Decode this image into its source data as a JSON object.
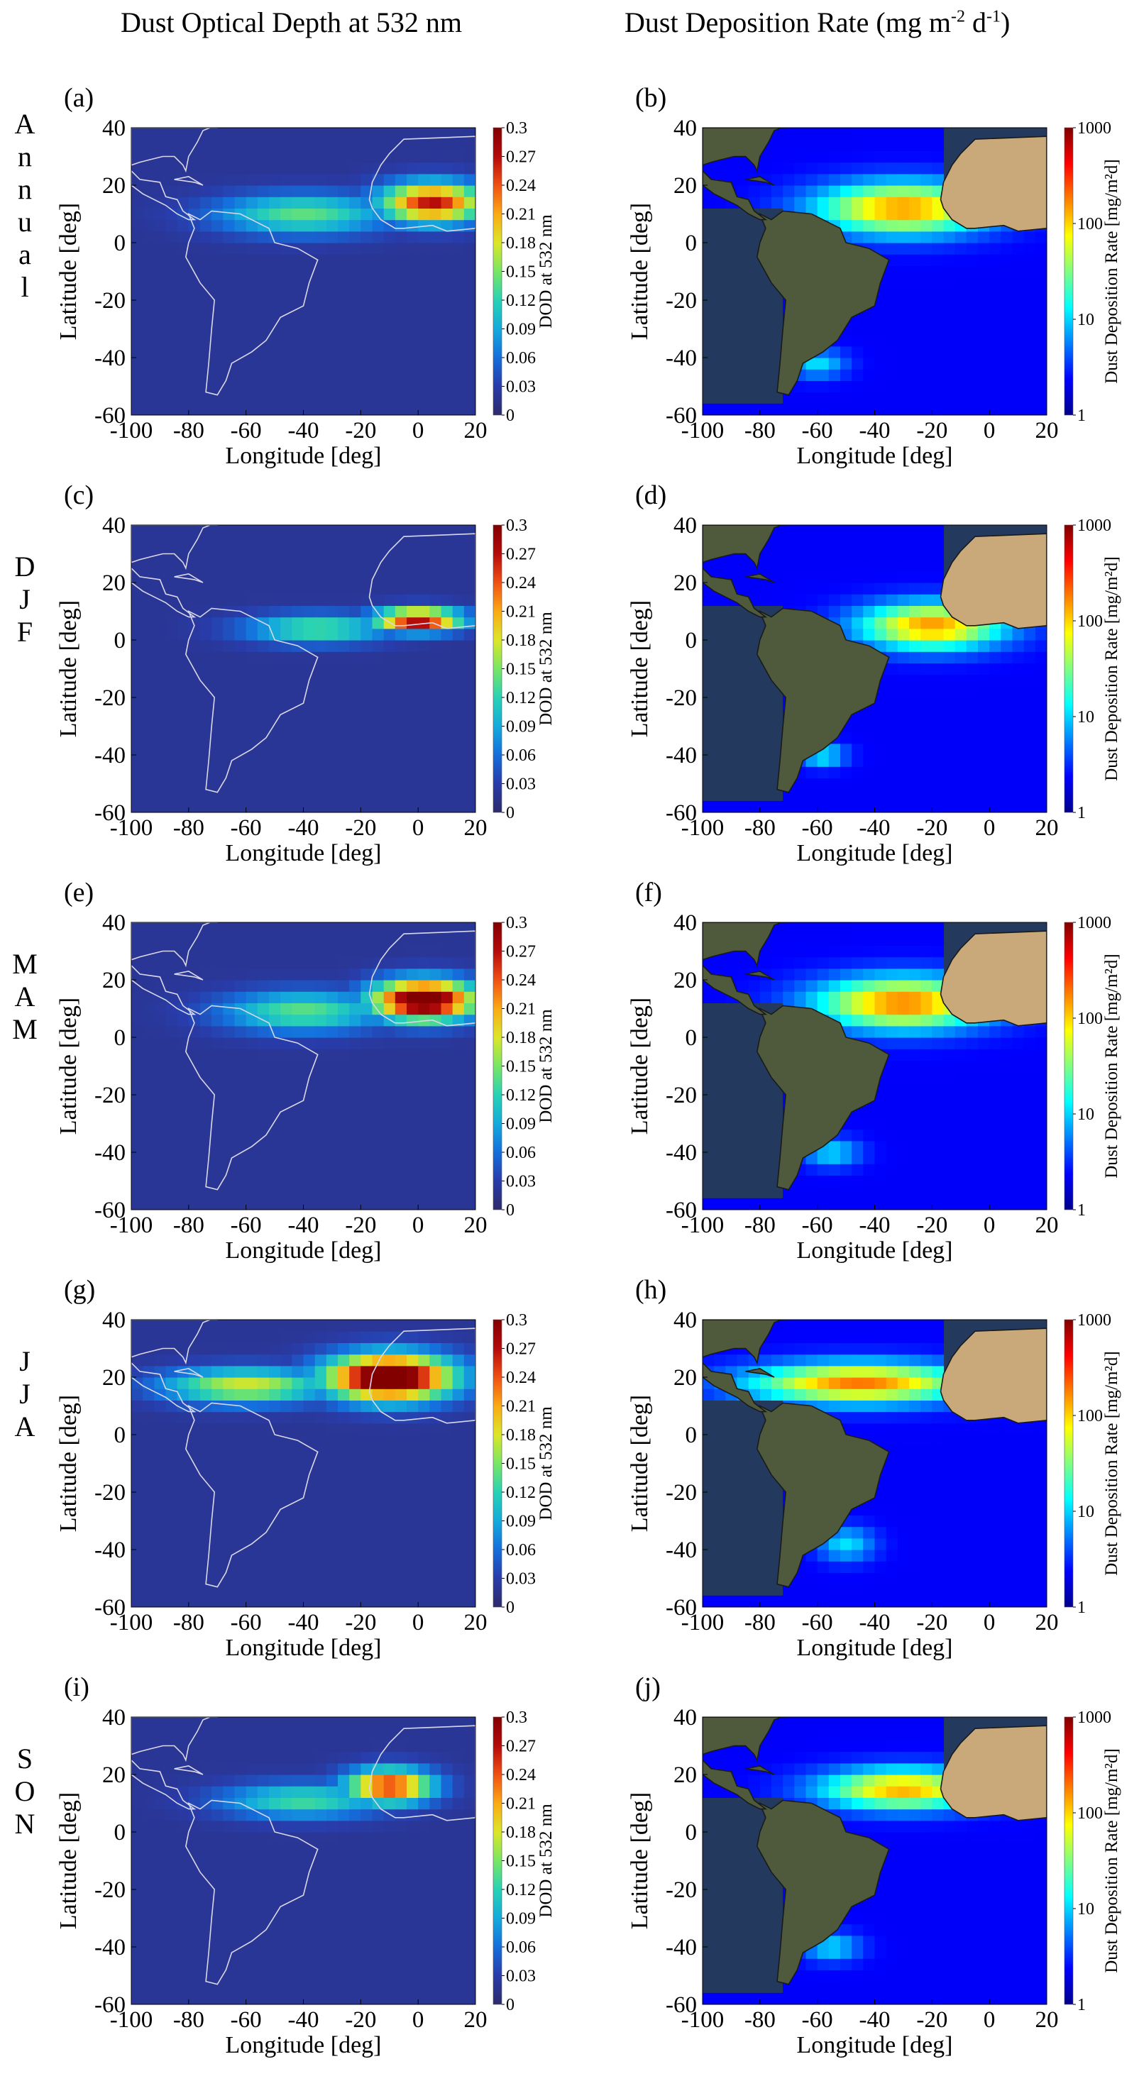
{
  "figure": {
    "col_titles": {
      "dod": "Dust Optical Depth at 532 nm",
      "dep_prefix": "Dust Deposition Rate (mg m",
      "dep_sup1": "-2",
      "dep_mid": " d",
      "dep_sup2": "-1",
      "dep_suffix": ")"
    },
    "row_labels": [
      "Annual",
      "DJF",
      "MAM",
      "JJA",
      "SON"
    ],
    "colors": {
      "ocean_dark": "#2e2a6a",
      "land_sat": "#4f5a3c",
      "sahara_sat": "#c9a97a",
      "deposition_background": "#1010c8",
      "coastline_dod": "#d8d8e8",
      "coastline_dep": "#1a1a1a"
    }
  },
  "chart_data": [
    {
      "panel": "(a)",
      "row": "Annual",
      "type": "heatmap",
      "title": "",
      "xlabel": "Longitude [deg]",
      "ylabel": "Latitude [deg]",
      "xlim": [
        -100,
        20
      ],
      "ylim": [
        -60,
        40
      ],
      "x_ticks": [
        "-100",
        "-80",
        "-60",
        "-40",
        "-20",
        "0",
        "20"
      ],
      "y_ticks": [
        "40",
        "20",
        "0",
        "-20",
        "-40",
        "-60"
      ],
      "colorbar": {
        "label": "DOD at 532 nm",
        "scale": "linear",
        "range": [
          0,
          0.3
        ],
        "ticks": [
          "0.3",
          "0.27",
          "0.24",
          "0.21",
          "0.18",
          "0.15",
          "0.12",
          "0.09",
          "0.06",
          "0.03",
          "0"
        ]
      },
      "plumes": [
        {
          "lon": 5,
          "lat": 14,
          "value": 0.25,
          "spread_lon": 18,
          "spread_lat": 7
        },
        {
          "lon": -40,
          "lat": 10,
          "value": 0.12,
          "spread_lon": 30,
          "spread_lat": 7
        }
      ]
    },
    {
      "panel": "(b)",
      "row": "Annual",
      "type": "heatmap",
      "title": "",
      "xlabel": "Longitude [deg]",
      "ylabel": "Latitude [deg]",
      "xlim": [
        -100,
        20
      ],
      "ylim": [
        -60,
        40
      ],
      "x_ticks": [
        "-100",
        "-80",
        "-60",
        "-40",
        "-20",
        "0",
        "20"
      ],
      "y_ticks": [
        "40",
        "20",
        "0",
        "-20",
        "-40",
        "-60"
      ],
      "colorbar": {
        "label": "Dust Deposition Rate [mg/m²d]",
        "scale": "log",
        "range": [
          1,
          1000
        ],
        "ticks": [
          "1000",
          "100",
          "10",
          "1"
        ]
      },
      "plumes": [
        {
          "lon": -30,
          "lat": 12,
          "value": 120,
          "spread_lon": 30,
          "spread_lat": 9
        },
        {
          "lon": -60,
          "lat": -42,
          "value": 6,
          "spread_lon": 10,
          "spread_lat": 5
        }
      ]
    },
    {
      "panel": "(c)",
      "row": "DJF",
      "type": "heatmap",
      "title": "",
      "xlabel": "Longitude [deg]",
      "ylabel": "Latitude [deg]",
      "xlim": [
        -100,
        20
      ],
      "ylim": [
        -60,
        40
      ],
      "x_ticks": [
        "-100",
        "-80",
        "-60",
        "-40",
        "-20",
        "0",
        "20"
      ],
      "y_ticks": [
        "40",
        "20",
        "0",
        "-20",
        "-40",
        "-60"
      ],
      "colorbar": {
        "label": "DOD at 532 nm",
        "scale": "linear",
        "range": [
          0,
          0.3
        ],
        "ticks": [
          "0.3",
          "0.27",
          "0.24",
          "0.21",
          "0.18",
          "0.15",
          "0.12",
          "0.09",
          "0.06",
          "0.03",
          "0"
        ]
      },
      "plumes": [
        {
          "lon": 0,
          "lat": 7,
          "value": 0.27,
          "spread_lon": 15,
          "spread_lat": 4
        },
        {
          "lon": -35,
          "lat": 4,
          "value": 0.12,
          "spread_lon": 25,
          "spread_lat": 5
        }
      ]
    },
    {
      "panel": "(d)",
      "row": "DJF",
      "type": "heatmap",
      "title": "",
      "xlabel": "Longitude [deg]",
      "ylabel": "Latitude [deg]",
      "xlim": [
        -100,
        20
      ],
      "ylim": [
        -60,
        40
      ],
      "x_ticks": [
        "-100",
        "-80",
        "-60",
        "-40",
        "-20",
        "0",
        "20"
      ],
      "y_ticks": [
        "40",
        "20",
        "0",
        "-20",
        "-40",
        "-60"
      ],
      "colorbar": {
        "label": "Dust Deposition Rate [mg/m²d]",
        "scale": "log",
        "range": [
          1,
          1000
        ],
        "ticks": [
          "1000",
          "100",
          "10",
          "1"
        ]
      },
      "plumes": [
        {
          "lon": -20,
          "lat": 5,
          "value": 120,
          "spread_lon": 25,
          "spread_lat": 8
        },
        {
          "lon": -58,
          "lat": -40,
          "value": 8,
          "spread_lon": 8,
          "spread_lat": 4
        }
      ]
    },
    {
      "panel": "(e)",
      "row": "MAM",
      "type": "heatmap",
      "title": "",
      "xlabel": "Longitude [deg]",
      "ylabel": "Latitude [deg]",
      "xlim": [
        -100,
        20
      ],
      "ylim": [
        -60,
        40
      ],
      "x_ticks": [
        "-100",
        "-80",
        "-60",
        "-40",
        "-20",
        "0",
        "20"
      ],
      "y_ticks": [
        "40",
        "20",
        "0",
        "-20",
        "-40",
        "-60"
      ],
      "colorbar": {
        "label": "DOD at 532 nm",
        "scale": "linear",
        "range": [
          0,
          0.3
        ],
        "ticks": [
          "0.3",
          "0.27",
          "0.24",
          "0.21",
          "0.18",
          "0.15",
          "0.12",
          "0.09",
          "0.06",
          "0.03",
          "0"
        ]
      },
      "plumes": [
        {
          "lon": 2,
          "lat": 13,
          "value": 0.32,
          "spread_lon": 18,
          "spread_lat": 7
        },
        {
          "lon": -40,
          "lat": 9,
          "value": 0.12,
          "spread_lon": 28,
          "spread_lat": 7
        }
      ]
    },
    {
      "panel": "(f)",
      "row": "MAM",
      "type": "heatmap",
      "title": "",
      "xlabel": "Longitude [deg]",
      "ylabel": "Latitude [deg]",
      "xlim": [
        -100,
        20
      ],
      "ylim": [
        -60,
        40
      ],
      "x_ticks": [
        "-100",
        "-80",
        "-60",
        "-40",
        "-20",
        "0",
        "20"
      ],
      "y_ticks": [
        "40",
        "20",
        "0",
        "-20",
        "-40",
        "-60"
      ],
      "colorbar": {
        "label": "Dust Deposition Rate [mg/m²d]",
        "scale": "log",
        "range": [
          1,
          1000
        ],
        "ticks": [
          "1000",
          "100",
          "10",
          "1"
        ]
      },
      "plumes": [
        {
          "lon": -30,
          "lat": 12,
          "value": 150,
          "spread_lon": 30,
          "spread_lat": 9
        },
        {
          "lon": -55,
          "lat": -40,
          "value": 6,
          "spread_lon": 10,
          "spread_lat": 5
        }
      ]
    },
    {
      "panel": "(g)",
      "row": "JJA",
      "type": "heatmap",
      "title": "",
      "xlabel": "Longitude [deg]",
      "ylabel": "Latitude [deg]",
      "xlim": [
        -100,
        20
      ],
      "ylim": [
        -60,
        40
      ],
      "x_ticks": [
        "-100",
        "-80",
        "-60",
        "-40",
        "-20",
        "0",
        "20"
      ],
      "y_ticks": [
        "40",
        "20",
        "0",
        "-20",
        "-40",
        "-60"
      ],
      "colorbar": {
        "label": "DOD at 532 nm",
        "scale": "linear",
        "range": [
          0,
          0.3
        ],
        "ticks": [
          "0.3",
          "0.27",
          "0.24",
          "0.21",
          "0.18",
          "0.15",
          "0.12",
          "0.09",
          "0.06",
          "0.03",
          "0"
        ]
      },
      "plumes": [
        {
          "lon": -10,
          "lat": 20,
          "value": 0.33,
          "spread_lon": 22,
          "spread_lat": 8
        },
        {
          "lon": -60,
          "lat": 17,
          "value": 0.16,
          "spread_lon": 28,
          "spread_lat": 6
        }
      ]
    },
    {
      "panel": "(h)",
      "row": "JJA",
      "type": "heatmap",
      "title": "",
      "xlabel": "Longitude [deg]",
      "ylabel": "Latitude [deg]",
      "xlim": [
        -100,
        20
      ],
      "ylim": [
        -60,
        40
      ],
      "x_ticks": [
        "-100",
        "-80",
        "-60",
        "-40",
        "-20",
        "0",
        "20"
      ],
      "y_ticks": [
        "40",
        "20",
        "0",
        "-20",
        "-40",
        "-60"
      ],
      "colorbar": {
        "label": "Dust Deposition Rate [mg/m²d]",
        "scale": "log",
        "range": [
          1,
          1000
        ],
        "ticks": [
          "1000",
          "100",
          "10",
          "1"
        ]
      },
      "plumes": [
        {
          "lon": -45,
          "lat": 18,
          "value": 150,
          "spread_lon": 38,
          "spread_lat": 7
        },
        {
          "lon": -50,
          "lat": -38,
          "value": 6,
          "spread_lon": 10,
          "spread_lat": 6
        }
      ]
    },
    {
      "panel": "(i)",
      "row": "SON",
      "type": "heatmap",
      "title": "",
      "xlabel": "Longitude [deg]",
      "ylabel": "Latitude [deg]",
      "xlim": [
        -100,
        20
      ],
      "ylim": [
        -60,
        40
      ],
      "x_ticks": [
        "-100",
        "-80",
        "-60",
        "-40",
        "-20",
        "0",
        "20"
      ],
      "y_ticks": [
        "40",
        "20",
        "0",
        "-20",
        "-40",
        "-60"
      ],
      "colorbar": {
        "label": "DOD at 532 nm",
        "scale": "linear",
        "range": [
          0,
          0.3
        ],
        "ticks": [
          "0.3",
          "0.27",
          "0.24",
          "0.21",
          "0.18",
          "0.15",
          "0.12",
          "0.09",
          "0.06",
          "0.03",
          "0"
        ]
      },
      "plumes": [
        {
          "lon": -10,
          "lat": 16,
          "value": 0.24,
          "spread_lon": 15,
          "spread_lat": 6
        },
        {
          "lon": -40,
          "lat": 11,
          "value": 0.11,
          "spread_lon": 28,
          "spread_lat": 6
        }
      ]
    },
    {
      "panel": "(j)",
      "row": "SON",
      "type": "heatmap",
      "title": "",
      "xlabel": "Longitude [deg]",
      "ylabel": "Latitude [deg]",
      "xlim": [
        -100,
        20
      ],
      "ylim": [
        -60,
        40
      ],
      "x_ticks": [
        "-100",
        "-80",
        "-60",
        "-40",
        "-20",
        "0",
        "20"
      ],
      "y_ticks": [
        "40",
        "20",
        "0",
        "-20",
        "-40",
        "-60"
      ],
      "colorbar": {
        "label": "Dust Deposition Rate [mg/m²d]",
        "scale": "log",
        "range": [
          1,
          1000
        ],
        "ticks": [
          "1000",
          "100",
          "10",
          "1"
        ]
      },
      "plumes": [
        {
          "lon": -30,
          "lat": 15,
          "value": 100,
          "spread_lon": 28,
          "spread_lat": 7
        },
        {
          "lon": -55,
          "lat": -40,
          "value": 6,
          "spread_lon": 10,
          "spread_lat": 5
        }
      ]
    }
  ]
}
